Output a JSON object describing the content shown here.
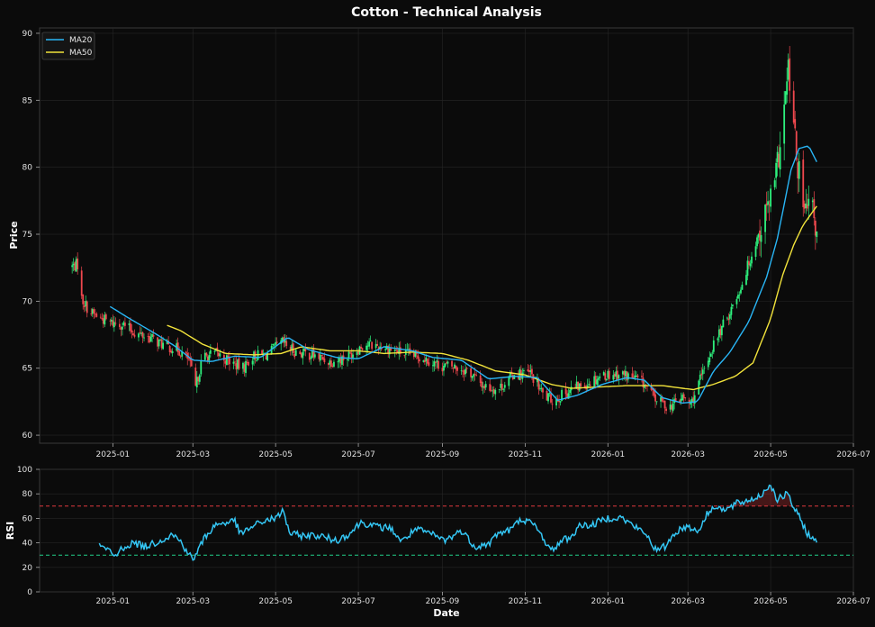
{
  "title": "Cotton - Technical Analysis",
  "colors": {
    "background": "#0b0b0b",
    "panel": "#0b0b0b",
    "grid": "#262626",
    "up": "#2ef07d",
    "down": "#f0484e",
    "ma20": "#29b6f6",
    "ma50": "#f2e33b",
    "rsi": "#34c6f4",
    "overbought": "#e0393e",
    "oversold": "#22d08a"
  },
  "chart_data": [
    {
      "type": "candlestick",
      "ylabel": "Price",
      "xlabel": "",
      "x_range": [
        "2024-11-08",
        "2026-07-01"
      ],
      "ylim": [
        59.4,
        90.4
      ],
      "yticks": [
        60,
        65,
        70,
        75,
        80,
        85,
        90
      ],
      "xticks": [
        "2025-01",
        "2025-03",
        "2025-05",
        "2025-07",
        "2025-09",
        "2025-11",
        "2026-01",
        "2026-03",
        "2026-05",
        "2026-07"
      ],
      "grid": true,
      "legend": {
        "placement": "top-left",
        "entries": [
          "MA20",
          "MA50"
        ]
      },
      "price_anchors": [
        [
          "2024-12-02",
          72.6
        ],
        [
          "2024-12-07",
          72.8
        ],
        [
          "2024-12-09",
          70.2
        ],
        [
          "2024-12-15",
          69.2
        ],
        [
          "2024-12-22",
          68.8
        ],
        [
          "2024-12-30",
          68.4
        ],
        [
          "2025-01-08",
          68.3
        ],
        [
          "2025-01-18",
          67.6
        ],
        [
          "2025-01-28",
          67.3
        ],
        [
          "2025-02-08",
          66.7
        ],
        [
          "2025-02-18",
          66.4
        ],
        [
          "2025-02-26",
          65.6
        ],
        [
          "2025-03-03",
          63.5
        ],
        [
          "2025-03-08",
          65.8
        ],
        [
          "2025-03-18",
          66.1
        ],
        [
          "2025-03-30",
          65.4
        ],
        [
          "2025-04-07",
          65.0
        ],
        [
          "2025-04-14",
          65.9
        ],
        [
          "2025-04-24",
          66.0
        ],
        [
          "2025-05-06",
          66.9
        ],
        [
          "2025-05-16",
          66.2
        ],
        [
          "2025-05-28",
          66.0
        ],
        [
          "2025-06-10",
          65.5
        ],
        [
          "2025-06-22",
          65.8
        ],
        [
          "2025-07-05",
          66.8
        ],
        [
          "2025-07-20",
          66.6
        ],
        [
          "2025-08-03",
          66.1
        ],
        [
          "2025-08-18",
          65.8
        ],
        [
          "2025-08-30",
          65.2
        ],
        [
          "2025-09-10",
          65.1
        ],
        [
          "2025-09-20",
          64.8
        ],
        [
          "2025-10-01",
          63.7
        ],
        [
          "2025-10-12",
          63.4
        ],
        [
          "2025-10-24",
          64.6
        ],
        [
          "2025-11-05",
          64.6
        ],
        [
          "2025-11-15",
          62.9
        ],
        [
          "2025-11-22",
          62.6
        ],
        [
          "2025-12-05",
          63.4
        ],
        [
          "2025-12-15",
          63.8
        ],
        [
          "2025-12-28",
          64.5
        ],
        [
          "2026-01-10",
          64.6
        ],
        [
          "2026-01-20",
          64.3
        ],
        [
          "2026-01-28",
          63.8
        ],
        [
          "2026-02-05",
          62.7
        ],
        [
          "2026-02-15",
          62.1
        ],
        [
          "2026-02-25",
          62.8
        ],
        [
          "2026-03-03",
          62.3
        ],
        [
          "2026-03-12",
          64.6
        ],
        [
          "2026-03-20",
          66.8
        ],
        [
          "2026-03-30",
          68.8
        ],
        [
          "2026-04-08",
          70.8
        ],
        [
          "2026-04-18",
          73.8
        ],
        [
          "2026-04-27",
          76.5
        ],
        [
          "2026-05-04",
          78.6
        ],
        [
          "2026-05-10",
          83.3
        ],
        [
          "2026-05-14",
          87.2
        ],
        [
          "2026-05-20",
          80.8
        ],
        [
          "2026-05-26",
          76.4
        ],
        [
          "2026-05-31",
          77.2
        ],
        [
          "2026-06-04",
          75.0
        ]
      ],
      "ma20_anchors": [
        [
          "2024-12-30",
          69.6
        ],
        [
          "2025-01-15",
          68.6
        ],
        [
          "2025-02-01",
          67.6
        ],
        [
          "2025-02-15",
          66.7
        ],
        [
          "2025-03-01",
          65.6
        ],
        [
          "2025-03-15",
          65.5
        ],
        [
          "2025-04-01",
          65.9
        ],
        [
          "2025-04-20",
          65.8
        ],
        [
          "2025-05-10",
          67.3
        ],
        [
          "2025-05-25",
          66.4
        ],
        [
          "2025-06-15",
          65.8
        ],
        [
          "2025-07-01",
          65.7
        ],
        [
          "2025-07-20",
          66.6
        ],
        [
          "2025-08-10",
          66.3
        ],
        [
          "2025-08-25",
          65.8
        ],
        [
          "2025-09-15",
          65.6
        ],
        [
          "2025-10-05",
          64.2
        ],
        [
          "2025-10-25",
          64.4
        ],
        [
          "2025-11-10",
          64.3
        ],
        [
          "2025-11-25",
          62.6
        ],
        [
          "2025-12-10",
          63.0
        ],
        [
          "2025-12-28",
          63.8
        ],
        [
          "2026-01-15",
          64.3
        ],
        [
          "2026-01-28",
          64.1
        ],
        [
          "2026-02-10",
          62.8
        ],
        [
          "2026-02-25",
          62.4
        ],
        [
          "2026-03-08",
          62.5
        ],
        [
          "2026-03-20",
          64.8
        ],
        [
          "2026-04-01",
          66.2
        ],
        [
          "2026-04-15",
          68.5
        ],
        [
          "2026-04-28",
          71.8
        ],
        [
          "2026-05-06",
          74.7
        ],
        [
          "2026-05-16",
          79.8
        ],
        [
          "2026-05-22",
          81.4
        ],
        [
          "2026-05-29",
          81.6
        ],
        [
          "2026-06-04",
          80.4
        ]
      ],
      "ma50_anchors": [
        [
          "2025-02-10",
          68.2
        ],
        [
          "2025-02-20",
          67.8
        ],
        [
          "2025-03-08",
          66.8
        ],
        [
          "2025-03-25",
          66.1
        ],
        [
          "2025-04-15",
          66.0
        ],
        [
          "2025-05-05",
          66.1
        ],
        [
          "2025-05-20",
          66.6
        ],
        [
          "2025-06-10",
          66.3
        ],
        [
          "2025-07-01",
          66.3
        ],
        [
          "2025-07-20",
          66.1
        ],
        [
          "2025-08-10",
          66.2
        ],
        [
          "2025-09-01",
          66.1
        ],
        [
          "2025-09-20",
          65.6
        ],
        [
          "2025-10-10",
          64.8
        ],
        [
          "2025-11-01",
          64.5
        ],
        [
          "2025-11-20",
          63.8
        ],
        [
          "2025-12-05",
          63.5
        ],
        [
          "2025-12-25",
          63.6
        ],
        [
          "2026-01-15",
          63.7
        ],
        [
          "2026-02-10",
          63.7
        ],
        [
          "2026-03-05",
          63.4
        ],
        [
          "2026-03-20",
          63.8
        ],
        [
          "2026-04-05",
          64.4
        ],
        [
          "2026-04-18",
          65.4
        ],
        [
          "2026-05-01",
          68.7
        ],
        [
          "2026-05-10",
          72.0
        ],
        [
          "2026-05-18",
          74.2
        ],
        [
          "2026-05-25",
          75.7
        ],
        [
          "2026-06-04",
          77.1
        ]
      ]
    },
    {
      "type": "line",
      "ylabel": "RSI",
      "xlabel": "Date",
      "ylim": [
        0,
        100
      ],
      "yticks": [
        0,
        20,
        40,
        60,
        80,
        100
      ],
      "thresholds": [
        70,
        30
      ],
      "grid": true,
      "rsi_anchors": [
        [
          "2024-12-22",
          38
        ],
        [
          "2024-12-28",
          34
        ],
        [
          "2025-01-03",
          29
        ],
        [
          "2025-01-08",
          36
        ],
        [
          "2025-01-16",
          40
        ],
        [
          "2025-01-25",
          37
        ],
        [
          "2025-02-05",
          42
        ],
        [
          "2025-02-14",
          47
        ],
        [
          "2025-02-20",
          41
        ],
        [
          "2025-03-01",
          26
        ],
        [
          "2025-03-10",
          45
        ],
        [
          "2025-03-18",
          55
        ],
        [
          "2025-04-01",
          58
        ],
        [
          "2025-04-05",
          47
        ],
        [
          "2025-04-15",
          54
        ],
        [
          "2025-04-25",
          59
        ],
        [
          "2025-05-02",
          60
        ],
        [
          "2025-05-06",
          67
        ],
        [
          "2025-05-12",
          47
        ],
        [
          "2025-05-20",
          46
        ],
        [
          "2025-06-01",
          46
        ],
        [
          "2025-06-15",
          42
        ],
        [
          "2025-06-25",
          48
        ],
        [
          "2025-07-03",
          57
        ],
        [
          "2025-07-15",
          53
        ],
        [
          "2025-07-25",
          52
        ],
        [
          "2025-08-02",
          41
        ],
        [
          "2025-08-12",
          51
        ],
        [
          "2025-08-22",
          48
        ],
        [
          "2025-09-03",
          42
        ],
        [
          "2025-09-15",
          50
        ],
        [
          "2025-09-25",
          37
        ],
        [
          "2025-10-05",
          39
        ],
        [
          "2025-10-12",
          48
        ],
        [
          "2025-10-20",
          50
        ],
        [
          "2025-10-30",
          60
        ],
        [
          "2025-11-08",
          54
        ],
        [
          "2025-11-15",
          43
        ],
        [
          "2025-11-20",
          33
        ],
        [
          "2025-11-28",
          42
        ],
        [
          "2025-12-05",
          45
        ],
        [
          "2025-12-12",
          55
        ],
        [
          "2025-12-20",
          54
        ],
        [
          "2025-12-30",
          60
        ],
        [
          "2026-01-10",
          61
        ],
        [
          "2026-01-20",
          54
        ],
        [
          "2026-01-30",
          46
        ],
        [
          "2026-02-06",
          33
        ],
        [
          "2026-02-12",
          37
        ],
        [
          "2026-02-20",
          49
        ],
        [
          "2026-03-01",
          54
        ],
        [
          "2026-03-08",
          49
        ],
        [
          "2026-03-15",
          63
        ],
        [
          "2026-03-22",
          71
        ],
        [
          "2026-03-28",
          66
        ],
        [
          "2026-04-06",
          72
        ],
        [
          "2026-04-16",
          75
        ],
        [
          "2026-04-24",
          79
        ],
        [
          "2026-05-01",
          88
        ],
        [
          "2026-05-06",
          75
        ],
        [
          "2026-05-13",
          80
        ],
        [
          "2026-05-18",
          69
        ],
        [
          "2026-05-24",
          57
        ],
        [
          "2026-05-28",
          48
        ],
        [
          "2026-06-01",
          43
        ],
        [
          "2026-06-04",
          40
        ]
      ]
    }
  ]
}
